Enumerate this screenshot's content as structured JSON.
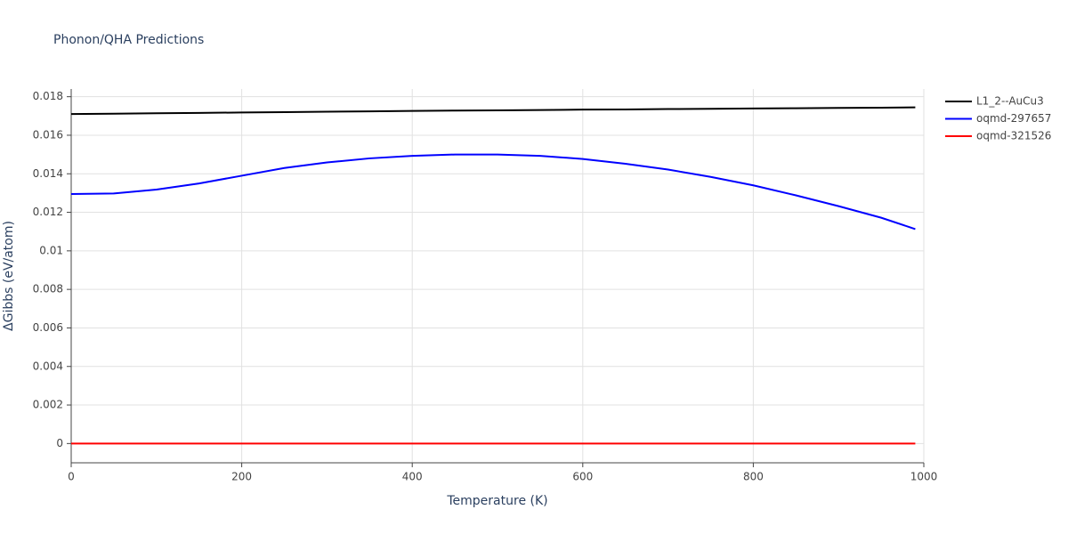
{
  "chart_data": {
    "type": "line",
    "title": "Phonon/QHA Predictions",
    "x_label": "Temperature (K)",
    "y_label": "ΔGibbs (eV/atom)",
    "x": [
      0,
      50,
      100,
      150,
      200,
      250,
      300,
      350,
      400,
      450,
      500,
      550,
      600,
      650,
      700,
      750,
      800,
      850,
      900,
      950,
      990
    ],
    "series": [
      {
        "name": "L1_2--AuCu3",
        "color": "#000000",
        "values": [
          0.0171,
          0.01712,
          0.01714,
          0.01716,
          0.01718,
          0.0172,
          0.01722,
          0.01724,
          0.01726,
          0.01728,
          0.01729,
          0.01731,
          0.01733,
          0.01734,
          0.01736,
          0.01737,
          0.01739,
          0.0174,
          0.01742,
          0.01743,
          0.01745
        ]
      },
      {
        "name": "oqmd-297657",
        "color": "#0000ff",
        "values": [
          0.01295,
          0.01298,
          0.01318,
          0.0135,
          0.0139,
          0.0143,
          0.01459,
          0.0148,
          0.01493,
          0.015,
          0.015,
          0.01493,
          0.01477,
          0.01452,
          0.01422,
          0.01384,
          0.0134,
          0.01288,
          0.01232,
          0.01172,
          0.01113
        ]
      },
      {
        "name": "oqmd-321526",
        "color": "#ff0000",
        "values": [
          0,
          0,
          0,
          0,
          0,
          0,
          0,
          0,
          0,
          0,
          0,
          0,
          0,
          0,
          0,
          0,
          0,
          0,
          0,
          0,
          0
        ]
      }
    ],
    "xlim": [
      0,
      1000
    ],
    "xticks": [
      0,
      200,
      400,
      600,
      800,
      1000
    ],
    "ylim": [
      -0.001,
      0.0184
    ],
    "yticks": [
      0,
      0.002,
      0.004,
      0.006,
      0.008,
      0.01,
      0.012,
      0.014,
      0.016,
      0.018
    ],
    "grid": true,
    "legend": "right"
  }
}
